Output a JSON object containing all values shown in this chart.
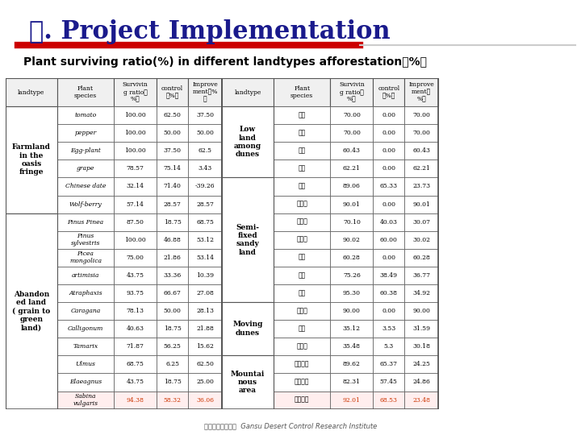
{
  "title": "三. Project Implementation",
  "subtitle": "Plant surviving ratio(%) in different landtypes afforestation（%）",
  "title_color": "#1a1a8c",
  "subtitle_color": "#000000",
  "bar_color": "#cc0000",
  "col_headers_left": [
    "landtype",
    "Plant\nspecies",
    "Survivin\ng ratio（\n%）",
    "control\n（%）",
    "Improve\nment（%\n）"
  ],
  "col_headers_right": [
    "landtype",
    "Plant\nspecies",
    "Survivin\ng ratio（\n%）",
    "control\n（%）",
    "Improve\nment（\n%）"
  ],
  "left_table": [
    [
      "Farmland\nin the\noasis\nfringe",
      "tomato",
      "100.00",
      "62.50",
      "37.50"
    ],
    [
      "",
      "pepper",
      "100.00",
      "50.00",
      "50.00"
    ],
    [
      "",
      "Egg-plant",
      "100.00",
      "37.50",
      "62.5"
    ],
    [
      "",
      "grape",
      "78.57",
      "75.14",
      "3.43"
    ],
    [
      "",
      "Chinese date",
      "32.14",
      "71.40",
      "-39.26"
    ],
    [
      "",
      "Wolf-berry",
      "57.14",
      "28.57",
      "28.57"
    ],
    [
      "Abandon\ned land\n( grain to\ngreen\nland)",
      "Pinus Pinea",
      "87.50",
      "18.75",
      "68.75"
    ],
    [
      "",
      "Pinus\nsylvestris",
      "100.00",
      "46.88",
      "53.12"
    ],
    [
      "",
      "Picea\nmongolica",
      "75.00",
      "21.86",
      "53.14"
    ],
    [
      "",
      "artimisia",
      "43.75",
      "33.36",
      "10.39"
    ],
    [
      "",
      "Atraphaxis",
      "93.75",
      "66.67",
      "27.08"
    ],
    [
      "",
      "Caragana",
      "78.13",
      "50.00",
      "28.13"
    ],
    [
      "",
      "Calligonum",
      "40.63",
      "18.75",
      "21.88"
    ],
    [
      "",
      "Tamarix",
      "71.87",
      "56.25",
      "15.62"
    ],
    [
      "",
      "Ulmus",
      "68.75",
      "6.25",
      "62.50"
    ],
    [
      "",
      "Elaeagnus",
      "43.75",
      "18.75",
      "25.00"
    ],
    [
      "",
      "Sabina\nvulgaris",
      "94.38",
      "58.32",
      "36.06"
    ]
  ],
  "right_table": [
    [
      "Low\nland\namong\ndunes",
      "霸王",
      "70.00",
      "0.00",
      "70.00"
    ],
    [
      "",
      "毛条",
      "70.00",
      "0.00",
      "70.00"
    ],
    [
      "",
      "沙葱",
      "60.43",
      "0.00",
      "60.43"
    ],
    [
      "",
      "白刺",
      "62.21",
      "0.00",
      "62.21"
    ],
    [
      "Semi-\nfixed\nsandy\nland",
      "花棒",
      "89.06",
      "65.33",
      "23.73"
    ],
    [
      "",
      "沙冬青",
      "90.01",
      "0.00",
      "90.01"
    ],
    [
      "",
      "沙拐枣",
      "70.10",
      "40.03",
      "30.07"
    ],
    [
      "",
      "沙木蓼",
      "90.02",
      "60.00",
      "30.02"
    ],
    [
      "",
      "柽柳",
      "60.28",
      "0.00",
      "60.28"
    ],
    [
      "",
      "花棒",
      "75.26",
      "38.49",
      "36.77"
    ],
    [
      "",
      "枝棱",
      "95.30",
      "60.38",
      "34.92"
    ],
    [
      "Moving\ndunes",
      "沙冬青",
      "90.00",
      "0.00",
      "90.00"
    ],
    [
      "",
      "枝棱",
      "35.12",
      "3.53",
      "31.59"
    ],
    [
      "",
      "沙拐枣",
      "35.48",
      "5.3",
      "30.18"
    ],
    [
      "Mountai\nnous\narea",
      "青海云杉",
      "89.62",
      "65.37",
      "24.25"
    ],
    [
      "",
      "沙地云杉",
      "82.31",
      "57.45",
      "24.86"
    ],
    [
      "",
      "祁连圆柏",
      "92.01",
      "68.53",
      "23.48"
    ]
  ],
  "farmland_rows": [
    0,
    5
  ],
  "abandoned_rows": [
    6,
    16
  ],
  "low_land_rows": [
    0,
    3
  ],
  "semi_fixed_rows": [
    4,
    10
  ],
  "moving_rows": [
    11,
    13
  ],
  "mountain_rows": [
    14,
    16
  ],
  "last_row_highlight": "#cc3300",
  "bg_color": "#ffffff",
  "header_bg": "#e8e8e8",
  "grid_color": "#555555"
}
